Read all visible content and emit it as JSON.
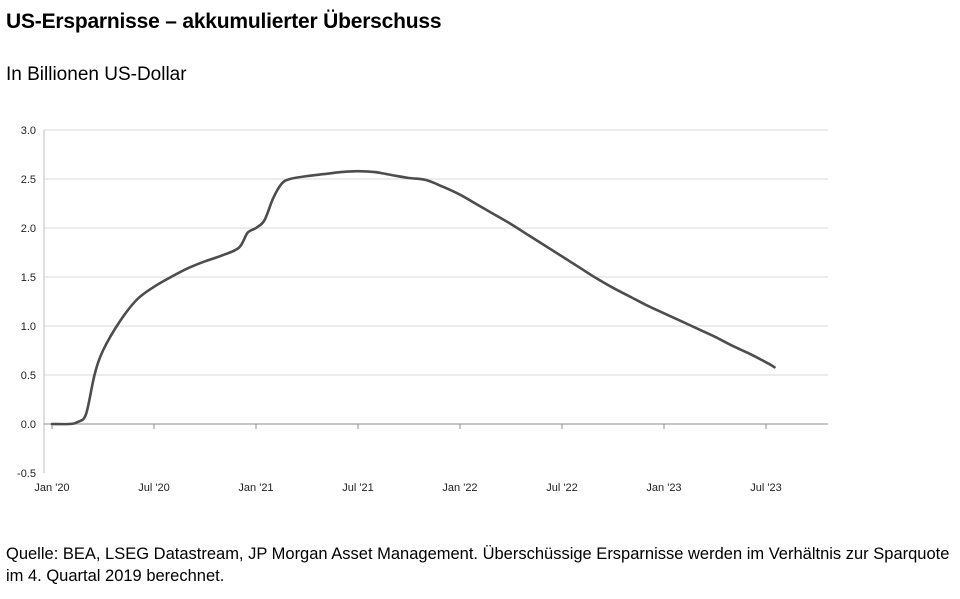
{
  "title": "US-Ersparnisse – akkumulierter Überschuss",
  "subtitle": "In Billionen US-Dollar",
  "source": "Quelle: BEA, LSEG Datastream, JP Morgan Asset Management. Überschüssige Ersparnisse werden im Verhältnis zur Sparquote im 4. Quartal 2019 berechnet.",
  "chart_data": {
    "type": "line",
    "title": "US-Ersparnisse – akkumulierter Überschuss",
    "xlabel": "",
    "ylabel": "In Billionen US-Dollar",
    "ylim": [
      -0.5,
      3.0
    ],
    "yticks": [
      "3.0",
      "2.5",
      "2.0",
      "1.5",
      "1.0",
      "0.5",
      "0.0",
      "-0.5"
    ],
    "ytick_values": [
      3.0,
      2.5,
      2.0,
      1.5,
      1.0,
      0.5,
      0.0,
      -0.5
    ],
    "xticks": [
      "Jan '20",
      "Jul '20",
      "Jan '21",
      "Jul '21",
      "Jan '22",
      "Jul '22",
      "Jan '23",
      "Jul '23"
    ],
    "xtick_months": [
      0,
      6,
      12,
      18,
      24,
      30,
      36,
      42
    ],
    "grid": true,
    "line_color": "#4d4d4d",
    "series": [
      {
        "name": "Akkumulierter Überschuss",
        "x_months": [
          0,
          1,
          1.5,
          2,
          2.5,
          3,
          4,
          5,
          6,
          7,
          8,
          9,
          10,
          11,
          11.5,
          12,
          12.5,
          13,
          13.5,
          14,
          15,
          16,
          17,
          18,
          19,
          20,
          21,
          22,
          23,
          24,
          25,
          26,
          27,
          28,
          29,
          30,
          31,
          32,
          33,
          34,
          35,
          36,
          37,
          38,
          39,
          40,
          41,
          42,
          42.5
        ],
        "values": [
          0.0,
          0.0,
          0.02,
          0.1,
          0.5,
          0.75,
          1.05,
          1.27,
          1.4,
          1.5,
          1.59,
          1.66,
          1.72,
          1.8,
          1.95,
          2.0,
          2.08,
          2.3,
          2.45,
          2.5,
          2.53,
          2.55,
          2.57,
          2.58,
          2.57,
          2.54,
          2.51,
          2.49,
          2.42,
          2.34,
          2.24,
          2.14,
          2.04,
          1.93,
          1.82,
          1.71,
          1.6,
          1.49,
          1.39,
          1.3,
          1.21,
          1.13,
          1.05,
          0.97,
          0.89,
          0.8,
          0.72,
          0.63,
          0.58
        ]
      }
    ]
  }
}
